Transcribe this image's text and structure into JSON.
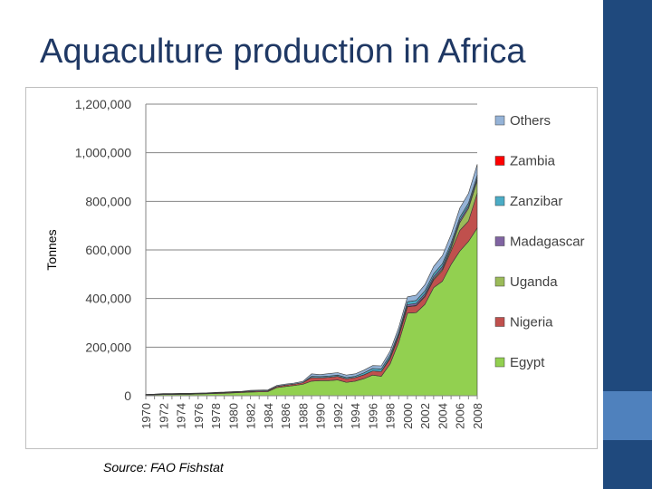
{
  "slide": {
    "title": "Aquaculture production in Africa",
    "source": "Source: FAO Fishstat"
  },
  "chart_data": {
    "type": "area",
    "stacked": true,
    "ylabel": "Tonnes",
    "xlabel": "",
    "ylim": [
      0,
      1200000
    ],
    "y_ticks": [
      "0",
      "200,000",
      "400,000",
      "600,000",
      "800,000",
      "1,000,000",
      "1,200,000"
    ],
    "x_tick_labels": [
      "1970",
      "1972",
      "1974",
      "1976",
      "1978",
      "1980",
      "1982",
      "1984",
      "1986",
      "1988",
      "1990",
      "1992",
      "1994",
      "1996",
      "1998",
      "2000",
      "2002",
      "2004",
      "2006",
      "2008"
    ],
    "legend_position": "right",
    "x": [
      1970,
      1971,
      1972,
      1973,
      1974,
      1975,
      1976,
      1977,
      1978,
      1979,
      1980,
      1981,
      1982,
      1983,
      1984,
      1985,
      1986,
      1987,
      1988,
      1989,
      1990,
      1991,
      1992,
      1993,
      1994,
      1995,
      1996,
      1997,
      1998,
      1999,
      2000,
      2001,
      2002,
      2003,
      2004,
      2005,
      2006,
      2007,
      2008
    ],
    "series": [
      {
        "name": "Egypt",
        "color": "#92d050",
        "values": [
          3000,
          4000,
          5000,
          5000,
          6000,
          6000,
          7000,
          8000,
          9000,
          10000,
          12000,
          13000,
          15000,
          16000,
          17000,
          33000,
          38000,
          42000,
          47000,
          60000,
          62000,
          62000,
          65000,
          55000,
          60000,
          70000,
          85000,
          80000,
          130000,
          220000,
          340000,
          342000,
          376000,
          445000,
          471000,
          540000,
          595000,
          635000,
          690000
        ]
      },
      {
        "name": "Nigeria",
        "color": "#c0504d",
        "values": [
          1000,
          1000,
          2000,
          2000,
          2000,
          2000,
          2000,
          2000,
          3000,
          3000,
          3000,
          3000,
          4000,
          4000,
          4000,
          5000,
          6000,
          6000,
          7000,
          15000,
          12000,
          14000,
          15000,
          15000,
          15000,
          16000,
          17000,
          20000,
          22000,
          24000,
          26000,
          28000,
          31000,
          31000,
          44000,
          56000,
          85000,
          84000,
          143000
        ]
      },
      {
        "name": "Uganda",
        "color": "#9bbb59",
        "values": [
          0,
          0,
          0,
          0,
          0,
          0,
          0,
          0,
          0,
          0,
          0,
          0,
          0,
          0,
          0,
          0,
          0,
          0,
          0,
          0,
          0,
          0,
          0,
          0,
          0,
          0,
          0,
          0,
          0,
          0,
          1000,
          2000,
          4000,
          5000,
          6000,
          10000,
          32000,
          52000,
          52000
        ]
      },
      {
        "name": "Madagascar",
        "color": "#8064a2",
        "values": [
          0,
          0,
          0,
          0,
          0,
          0,
          0,
          0,
          0,
          0,
          0,
          0,
          0,
          0,
          0,
          0,
          0,
          0,
          0,
          0,
          0,
          0,
          0,
          0,
          0,
          0,
          0,
          0,
          5000,
          7000,
          8000,
          8000,
          9000,
          9000,
          10000,
          10000,
          10000,
          10000,
          10000
        ]
      },
      {
        "name": "Zanzibar",
        "color": "#4bacc6",
        "values": [
          0,
          0,
          0,
          0,
          0,
          0,
          0,
          0,
          0,
          0,
          0,
          0,
          0,
          0,
          0,
          0,
          0,
          0,
          0,
          5000,
          5000,
          5000,
          5000,
          5000,
          5000,
          8000,
          10000,
          10000,
          10000,
          10000,
          12000,
          12000,
          12000,
          12000,
          12000,
          12000,
          12000,
          12000,
          12000
        ]
      },
      {
        "name": "Zambia",
        "color": "#ff0000",
        "values": [
          0,
          0,
          0,
          0,
          0,
          0,
          0,
          0,
          0,
          0,
          0,
          0,
          0,
          0,
          0,
          0,
          0,
          0,
          0,
          0,
          0,
          0,
          0,
          0,
          0,
          0,
          0,
          0,
          0,
          0,
          0,
          0,
          0,
          0,
          0,
          0,
          0,
          0,
          0
        ]
      },
      {
        "name": "Others",
        "color": "#95b3d7",
        "values": [
          2000,
          2000,
          2000,
          2000,
          2000,
          2000,
          2000,
          2000,
          2000,
          2000,
          2000,
          2000,
          3000,
          3000,
          3000,
          4000,
          4000,
          4000,
          5000,
          10000,
          8000,
          10000,
          10000,
          10000,
          10000,
          11000,
          12000,
          13000,
          16000,
          20000,
          20000,
          22000,
          25000,
          30000,
          33000,
          35000,
          38000,
          40000,
          45000
        ]
      }
    ]
  }
}
